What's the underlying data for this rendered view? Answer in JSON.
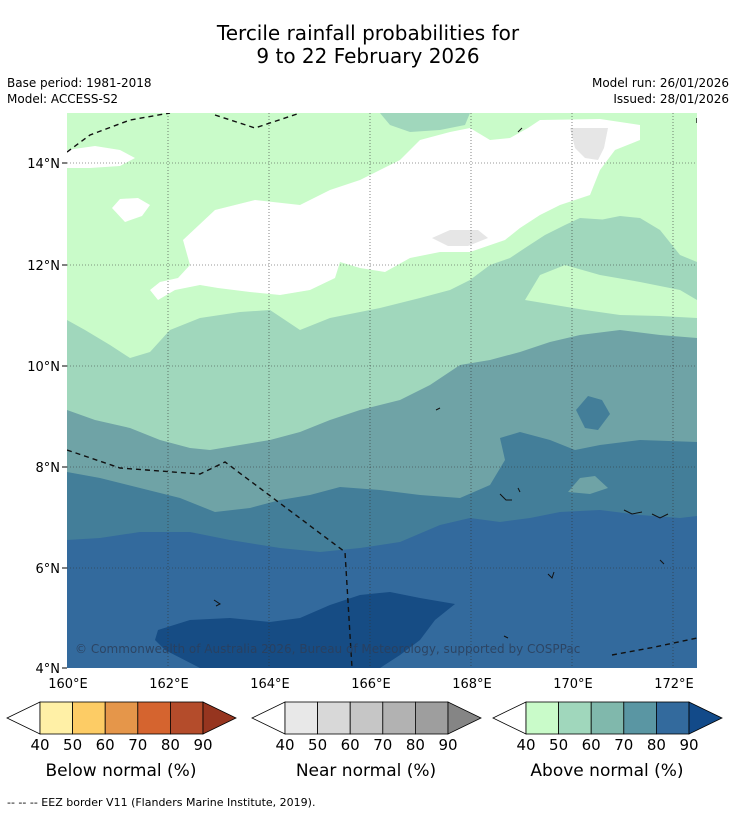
{
  "title": {
    "line1": "Tercile rainfall probabilities for",
    "line2": "9 to 22 February 2026"
  },
  "meta": {
    "base_period": "Base period: 1981-2018",
    "model": "Model: ACCESS-S2",
    "model_run": "Model run: 26/01/2026",
    "issued": "Issued: 28/01/2026"
  },
  "map": {
    "lon_ticks": [
      "160°E",
      "162°E",
      "164°E",
      "166°E",
      "168°E",
      "170°E",
      "172°E"
    ],
    "lat_ticks": [
      "4°N",
      "6°N",
      "8°N",
      "10°N",
      "12°N",
      "14°N"
    ],
    "copyright": "© Commonwealth of Australia 2026, Bureau of Meteorology, supported by COSPPac"
  },
  "colorbars": [
    {
      "label": "Below normal (%)",
      "ticks": [
        "40",
        "50",
        "60",
        "70",
        "80",
        "90"
      ],
      "colors": [
        "#ffffff",
        "#fff0a6",
        "#fdcc65",
        "#e5964a",
        "#d5642f",
        "#b44c2b",
        "#96351f"
      ]
    },
    {
      "label": "Near normal (%)",
      "ticks": [
        "40",
        "50",
        "60",
        "70",
        "80",
        "90"
      ],
      "colors": [
        "#ffffff",
        "#e8e8e8",
        "#d8d8d8",
        "#c6c6c6",
        "#b2b2b2",
        "#9e9e9e",
        "#858585"
      ]
    },
    {
      "label": "Above normal (%)",
      "ticks": [
        "40",
        "50",
        "60",
        "70",
        "80",
        "90"
      ],
      "colors": [
        "#ffffff",
        "#c9fbc9",
        "#a0d7bc",
        "#80b8ac",
        "#5a96a3",
        "#336a9d",
        "#124a89"
      ]
    }
  ],
  "footer": "--  --  -- EEZ border V11 (Flanders Marine Institute, 2019)."
}
